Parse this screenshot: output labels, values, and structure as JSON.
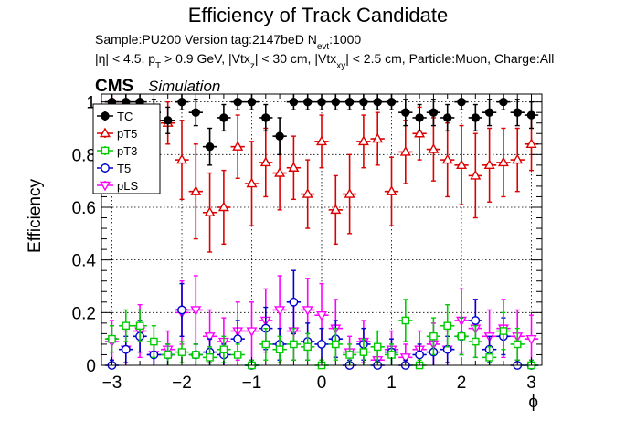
{
  "chart_data": {
    "type": "scatter",
    "title": "Efficiency of Track Candidate",
    "sample_line": "Sample:PU200   Version tag:2147beD  N",
    "sample_sub": "evt",
    "sample_tail": ":1000",
    "cuts": {
      "p1": "|η| < 4.5, p",
      "p1sub": "T",
      "p2": " > 0.9 GeV, |Vtx",
      "p2sub": "z",
      "p3": "| < 30 cm, |Vtx",
      "p3sub": "xy",
      "p4": "| < 2.5 cm, Particle:Muon, Charge:All"
    },
    "cms_label": "CMS",
    "simulation_label": "Simulation",
    "xlabel": "ϕ",
    "ylabel": "Efficiency",
    "xlim": [
      -3.15,
      3.15
    ],
    "ylim": [
      0,
      1.03
    ],
    "xticks": [
      -3,
      -2,
      -1,
      0,
      1,
      2,
      3
    ],
    "xtick_labels": [
      "−3",
      "−2",
      "−1",
      "0",
      "1",
      "2",
      "3"
    ],
    "yticks": [
      0,
      0.2,
      0.4,
      0.6,
      0.8,
      1
    ],
    "ytick_labels": [
      "0",
      "0.2",
      "0.4",
      "0.6",
      "0.8",
      "1"
    ],
    "grid": true,
    "legend_position": "top-left",
    "x": [
      -3.0,
      -2.8,
      -2.6,
      -2.4,
      -2.2,
      -2.0,
      -1.8,
      -1.6,
      -1.4,
      -1.2,
      -1.0,
      -0.8,
      -0.6,
      -0.4,
      -0.2,
      0.0,
      0.2,
      0.4,
      0.6,
      0.8,
      1.0,
      1.2,
      1.4,
      1.6,
      1.8,
      2.0,
      2.2,
      2.4,
      2.6,
      2.8,
      3.0
    ],
    "xerr": 0.1,
    "series": [
      {
        "name": "TC",
        "color": "#000000",
        "marker": "filled-circle",
        "values": [
          1.0,
          1.0,
          1.0,
          0.96,
          0.93,
          1.0,
          0.96,
          0.83,
          0.94,
          1.0,
          1.0,
          0.94,
          0.87,
          1.0,
          1.0,
          1.0,
          1.0,
          1.0,
          1.0,
          1.0,
          1.0,
          0.96,
          0.94,
          0.96,
          0.94,
          1.0,
          0.94,
          0.96,
          1.0,
          0.96,
          0.95
        ],
        "errors": [
          0.04,
          0.03,
          0.03,
          0.05,
          0.05,
          0.03,
          0.05,
          0.07,
          0.05,
          0.03,
          0.03,
          0.05,
          0.07,
          0.03,
          0.03,
          0.03,
          0.03,
          0.03,
          0.03,
          0.03,
          0.03,
          0.05,
          0.05,
          0.05,
          0.05,
          0.03,
          0.05,
          0.05,
          0.03,
          0.05,
          0.05
        ]
      },
      {
        "name": "pT5",
        "color": "#dd0000",
        "marker": "open-triangle",
        "values": [
          1.0,
          0.95,
          0.97,
          0.93,
          0.92,
          0.78,
          0.66,
          0.58,
          0.6,
          0.83,
          0.69,
          0.77,
          0.73,
          0.75,
          0.65,
          0.85,
          0.59,
          0.65,
          0.85,
          0.86,
          0.66,
          0.81,
          0.88,
          0.82,
          0.78,
          0.76,
          0.72,
          0.76,
          0.77,
          0.78,
          0.84
        ],
        "errors": [
          0.03,
          0.05,
          0.04,
          0.06,
          0.08,
          0.15,
          0.18,
          0.15,
          0.14,
          0.12,
          0.16,
          0.13,
          0.14,
          0.12,
          0.13,
          0.1,
          0.13,
          0.15,
          0.1,
          0.1,
          0.13,
          0.12,
          0.1,
          0.12,
          0.14,
          0.15,
          0.16,
          0.14,
          0.13,
          0.12,
          0.1
        ]
      },
      {
        "name": "pT3",
        "color": "#00cc00",
        "marker": "open-square",
        "values": [
          0.1,
          0.15,
          0.15,
          0.09,
          0.04,
          0.05,
          0.04,
          0.03,
          0.06,
          0.04,
          0.0,
          0.08,
          0.06,
          0.08,
          0.07,
          0.0,
          0.08,
          0.04,
          0.05,
          0.07,
          0.04,
          0.17,
          0.0,
          0.11,
          0.15,
          0.11,
          0.09,
          0.03,
          0.13,
          0.08,
          0.0
        ],
        "errors": [
          0.05,
          0.06,
          0.06,
          0.06,
          0.04,
          0.04,
          0.04,
          0.04,
          0.05,
          0.04,
          0.02,
          0.06,
          0.05,
          0.06,
          0.05,
          0.02,
          0.06,
          0.04,
          0.05,
          0.06,
          0.04,
          0.08,
          0.02,
          0.07,
          0.08,
          0.07,
          0.06,
          0.04,
          0.07,
          0.06,
          0.02
        ]
      },
      {
        "name": "T5",
        "color": "#0000cc",
        "marker": "open-circle",
        "values": [
          0.0,
          0.06,
          0.11,
          0.04,
          0.04,
          0.21,
          0.04,
          0.05,
          0.04,
          0.1,
          0.0,
          0.14,
          0.08,
          0.24,
          0.09,
          0.08,
          0.1,
          0.0,
          0.08,
          0.0,
          0.05,
          0.0,
          0.04,
          0.05,
          0.06,
          0.11,
          0.17,
          0.06,
          0.11,
          0.0,
          0.0
        ],
        "errors": [
          0.02,
          0.05,
          0.06,
          0.04,
          0.04,
          0.1,
          0.04,
          0.05,
          0.04,
          0.07,
          0.02,
          0.08,
          0.06,
          0.12,
          0.07,
          0.06,
          0.07,
          0.02,
          0.06,
          0.02,
          0.05,
          0.02,
          0.04,
          0.05,
          0.05,
          0.07,
          0.08,
          0.05,
          0.07,
          0.02,
          0.02
        ]
      },
      {
        "name": "pLS",
        "color": "#ff00ff",
        "marker": "open-triangle-down",
        "values": [
          0.09,
          0.06,
          0.13,
          0.04,
          0.06,
          0.2,
          0.21,
          0.11,
          0.09,
          0.13,
          0.13,
          0.17,
          0.21,
          0.13,
          0.21,
          0.19,
          0.14,
          0.05,
          0.09,
          0.02,
          0.06,
          0.03,
          0.06,
          0.08,
          0.06,
          0.17,
          0.14,
          0.11,
          0.14,
          0.11,
          0.1
        ],
        "errors": [
          0.08,
          0.07,
          0.1,
          0.05,
          0.07,
          0.12,
          0.13,
          0.1,
          0.09,
          0.11,
          0.11,
          0.12,
          0.13,
          0.11,
          0.12,
          0.12,
          0.11,
          0.06,
          0.08,
          0.04,
          0.07,
          0.05,
          0.07,
          0.08,
          0.07,
          0.12,
          0.11,
          0.1,
          0.11,
          0.1,
          0.09
        ]
      }
    ]
  }
}
